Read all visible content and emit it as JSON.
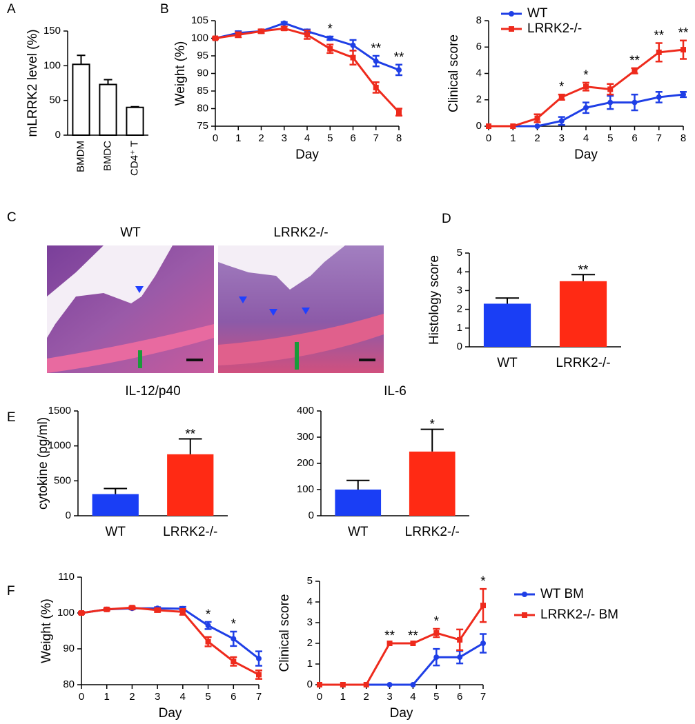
{
  "chart_data": [
    {
      "type": "bar",
      "panel": "A",
      "ylabel": "mLRRK2 level (%)",
      "categories": [
        "BMDM",
        "BMDC",
        "CD4⁺ T"
      ],
      "values": [
        102,
        73,
        40
      ],
      "errors": [
        13,
        7,
        1
      ],
      "colors": [
        "#ffffff",
        "#ffffff",
        "#ffffff"
      ],
      "edgecolor": "#000000",
      "ylim": [
        0,
        150
      ],
      "yticks": [
        0,
        50,
        100,
        150
      ]
    },
    {
      "type": "line",
      "panel": "B",
      "ylabel": "Weight (%)",
      "xlabel": "Day",
      "x": [
        0,
        1,
        2,
        3,
        4,
        5,
        6,
        7,
        8
      ],
      "xlim": [
        0,
        8
      ],
      "xticks": [
        0,
        1,
        2,
        3,
        4,
        5,
        6,
        7,
        8
      ],
      "ylim": [
        75,
        105
      ],
      "yticks": [
        75,
        80,
        85,
        90,
        95,
        100,
        105
      ],
      "series": [
        {
          "color": "#1f3fe6",
          "marker": "circle",
          "values": [
            100,
            101.5,
            102,
            104.3,
            102,
            100,
            98,
            93.5,
            91
          ],
          "errors": [
            0.3,
            0.5,
            0.5,
            0.3,
            0.5,
            0.5,
            1.5,
            1.5,
            1.5
          ]
        },
        {
          "color": "#ee2a1c",
          "marker": "square",
          "values": [
            100,
            101,
            102,
            102.8,
            101,
            97,
            94.5,
            86,
            79
          ],
          "errors": [
            0.3,
            0.7,
            0.5,
            0.5,
            1.2,
            1.2,
            2,
            1.5,
            1
          ]
        }
      ],
      "annotations": [
        {
          "text": "*",
          "x": 5
        },
        {
          "text": "**",
          "x": 7
        },
        {
          "text": "**",
          "x": 8
        }
      ]
    },
    {
      "type": "line",
      "ylabel": "Clinical score",
      "xlabel": "Day",
      "x": [
        0,
        1,
        2,
        3,
        4,
        5,
        6,
        7,
        8
      ],
      "xlim": [
        0,
        8
      ],
      "xticks": [
        0,
        1,
        2,
        3,
        4,
        5,
        6,
        7,
        8
      ],
      "ylim": [
        0,
        8
      ],
      "yticks": [
        0,
        2,
        4,
        6,
        8
      ],
      "legend": "upper left",
      "series": [
        {
          "name": "WT",
          "color": "#1f3fe6",
          "marker": "circle",
          "values": [
            0,
            0,
            0,
            0.4,
            1.4,
            1.8,
            1.8,
            2.2,
            2.4
          ],
          "errors": [
            0,
            0,
            0,
            0.3,
            0.4,
            0.5,
            0.6,
            0.4,
            0.2
          ]
        },
        {
          "name": "LRRK2-/-",
          "color": "#ee2a1c",
          "marker": "square",
          "values": [
            0,
            0,
            0.6,
            2.2,
            3,
            2.8,
            4.2,
            5.6,
            5.8
          ],
          "errors": [
            0,
            0,
            0.3,
            0.2,
            0.3,
            0.4,
            0.2,
            0.7,
            0.7
          ]
        }
      ],
      "annotations": [
        {
          "text": "*",
          "x": 3
        },
        {
          "text": "*",
          "x": 4
        },
        {
          "text": "**",
          "x": 6
        },
        {
          "text": "**",
          "x": 7
        },
        {
          "text": "**",
          "x": 8
        }
      ]
    },
    {
      "type": "bar",
      "panel": "D",
      "ylabel": "Histology score",
      "categories": [
        "WT",
        "LRRK2-/-"
      ],
      "values": [
        2.3,
        3.5
      ],
      "errors": [
        0.3,
        0.35
      ],
      "colors": [
        "#1a3ef5",
        "#ff2a14"
      ],
      "ylim": [
        0,
        5
      ],
      "yticks": [
        0,
        1,
        2,
        3,
        4,
        5
      ],
      "annotations": [
        {
          "text": "**",
          "x": 1
        }
      ]
    },
    {
      "type": "bar",
      "panel": "E",
      "title": "IL-12/p40",
      "ylabel": "cytokine (pg/ml)",
      "categories": [
        "WT",
        "LRRK2-/-"
      ],
      "values": [
        310,
        880
      ],
      "errors": [
        80,
        220
      ],
      "colors": [
        "#1a3ef5",
        "#ff2a14"
      ],
      "ylim": [
        0,
        1500
      ],
      "yticks": [
        0,
        500,
        1000,
        1500
      ],
      "annotations": [
        {
          "text": "**",
          "x": 1
        }
      ]
    },
    {
      "type": "bar",
      "title": "IL-6",
      "categories": [
        "WT",
        "LRRK2-/-"
      ],
      "values": [
        100,
        245
      ],
      "errors": [
        35,
        85
      ],
      "colors": [
        "#1a3ef5",
        "#ff2a14"
      ],
      "ylim": [
        0,
        400
      ],
      "yticks": [
        0,
        100,
        200,
        300,
        400
      ],
      "annotations": [
        {
          "text": "*",
          "x": 1
        }
      ]
    },
    {
      "type": "line",
      "panel": "F",
      "ylabel": "Weight (%)",
      "xlabel": "Day",
      "x": [
        0,
        1,
        2,
        3,
        4,
        5,
        6,
        7
      ],
      "xlim": [
        0,
        7
      ],
      "xticks": [
        0,
        1,
        2,
        3,
        4,
        5,
        6,
        7
      ],
      "ylim": [
        80,
        110
      ],
      "yticks": [
        80,
        90,
        100,
        110
      ],
      "series": [
        {
          "color": "#1f3fe6",
          "marker": "circle",
          "values": [
            100,
            101,
            101.3,
            101.3,
            101.2,
            96.5,
            92.8,
            87.3
          ],
          "errors": [
            0.3,
            0.3,
            0.3,
            0.3,
            0.5,
            1,
            2,
            2
          ]
        },
        {
          "color": "#ee2a1c",
          "marker": "square",
          "values": [
            100,
            101,
            101.5,
            100.8,
            100.3,
            92,
            86.5,
            82.8
          ],
          "errors": [
            0.3,
            0.3,
            0.3,
            0.5,
            0.8,
            1.3,
            1.2,
            1.2
          ]
        }
      ],
      "annotations": [
        {
          "text": "*",
          "x": 5
        },
        {
          "text": "*",
          "x": 6
        }
      ]
    },
    {
      "type": "line",
      "ylabel": "Clinical score",
      "xlabel": "Day",
      "x": [
        0,
        1,
        2,
        3,
        4,
        5,
        6,
        7
      ],
      "xlim": [
        0,
        7
      ],
      "xticks": [
        0,
        1,
        2,
        3,
        4,
        5,
        6,
        7
      ],
      "ylim": [
        0,
        5
      ],
      "yticks": [
        0,
        1,
        2,
        3,
        4,
        5
      ],
      "legend": "above right",
      "series": [
        {
          "name": "WT BM",
          "color": "#1f3fe6",
          "marker": "circle",
          "values": [
            0,
            0,
            0,
            0,
            0,
            1.33,
            1.33,
            2
          ],
          "errors": [
            0,
            0,
            0,
            0,
            0,
            0.4,
            0.3,
            0.45
          ]
        },
        {
          "name": "LRRK2-/- BM",
          "color": "#ee2a1c",
          "marker": "square",
          "values": [
            0,
            0,
            0,
            2,
            2,
            2.5,
            2.17,
            3.83
          ],
          "errors": [
            0,
            0,
            0,
            0,
            0,
            0.2,
            0.5,
            0.8
          ]
        }
      ],
      "annotations": [
        {
          "text": "**",
          "x": 3
        },
        {
          "text": "**",
          "x": 4
        },
        {
          "text": "*",
          "x": 5
        },
        {
          "text": "*",
          "x": 7
        }
      ]
    }
  ],
  "images": {
    "panel": "C",
    "labels": [
      "WT",
      "LRRK2-/-"
    ]
  }
}
